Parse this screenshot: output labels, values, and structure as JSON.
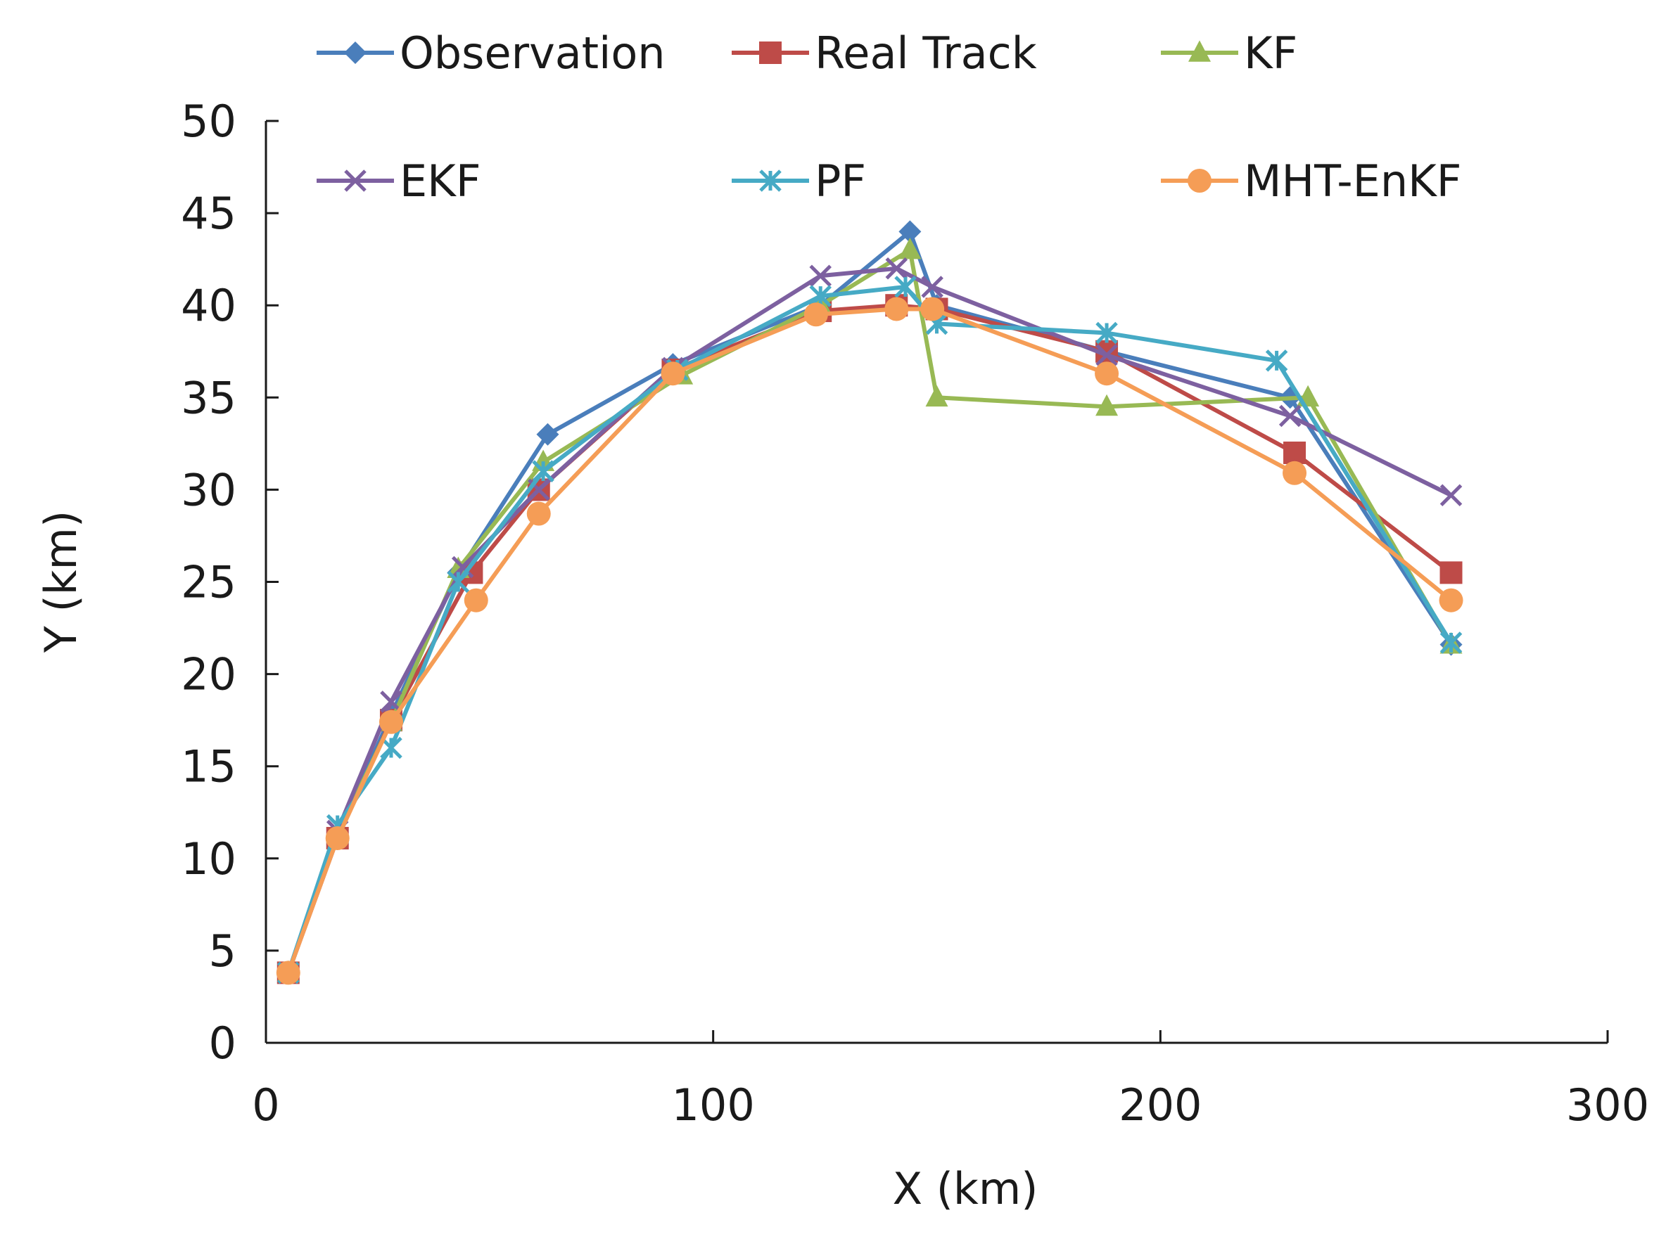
{
  "chart_data": {
    "type": "line",
    "title": "",
    "xlabel": "X (km)",
    "ylabel": "Y (km)",
    "xlim": [
      0,
      300
    ],
    "ylim": [
      0,
      50
    ],
    "xticks": [
      0,
      100,
      200,
      300
    ],
    "yticks": [
      0,
      5,
      10,
      15,
      20,
      25,
      30,
      35,
      40,
      45,
      50
    ],
    "grid": false,
    "legend_position": "top",
    "series": [
      {
        "name": "Observation",
        "color": "#4A7EBB",
        "marker": "diamond",
        "points": [
          [
            5,
            3.8
          ],
          [
            16,
            11.2
          ],
          [
            28,
            17.8
          ],
          [
            43,
            25.5
          ],
          [
            63,
            33
          ],
          [
            91,
            36.8
          ],
          [
            124,
            40
          ],
          [
            144,
            44
          ],
          [
            150,
            40
          ],
          [
            188,
            37.5
          ],
          [
            229,
            35
          ],
          [
            265,
            21.6
          ]
        ]
      },
      {
        "name": "Real Track",
        "color": "#BE4B48",
        "marker": "square",
        "points": [
          [
            5,
            3.8
          ],
          [
            16,
            11.1
          ],
          [
            28,
            17.5
          ],
          [
            46,
            25.5
          ],
          [
            61,
            30
          ],
          [
            91,
            36.5
          ],
          [
            124,
            39.7
          ],
          [
            141,
            40
          ],
          [
            150,
            39.8
          ],
          [
            188,
            37.5
          ],
          [
            230,
            32
          ],
          [
            265,
            25.5
          ]
        ]
      },
      {
        "name": "KF",
        "color": "#98B954",
        "marker": "triangle",
        "points": [
          [
            5,
            3.8
          ],
          [
            16,
            11.3
          ],
          [
            28,
            17.4
          ],
          [
            43,
            25.7
          ],
          [
            62,
            31.5
          ],
          [
            93,
            36.2
          ],
          [
            124,
            40
          ],
          [
            144,
            43
          ],
          [
            150,
            35
          ],
          [
            188,
            34.5
          ],
          [
            233,
            35
          ],
          [
            265,
            21.6
          ]
        ]
      },
      {
        "name": "EKF",
        "color": "#7D60A0",
        "marker": "x",
        "points": [
          [
            5,
            3.8
          ],
          [
            16,
            11.5
          ],
          [
            28,
            18.5
          ],
          [
            44,
            25.8
          ],
          [
            61,
            30
          ],
          [
            91,
            36.6
          ],
          [
            124,
            41.6
          ],
          [
            141,
            42
          ],
          [
            149,
            41
          ],
          [
            188,
            37.3
          ],
          [
            229,
            34
          ],
          [
            265,
            29.7
          ]
        ]
      },
      {
        "name": "PF",
        "color": "#46AAC5",
        "marker": "star",
        "points": [
          [
            5,
            3.8
          ],
          [
            16,
            11.8
          ],
          [
            28,
            16
          ],
          [
            43,
            25
          ],
          [
            62,
            31
          ],
          [
            92,
            36.5
          ],
          [
            124,
            40.5
          ],
          [
            143,
            41
          ],
          [
            150,
            39
          ],
          [
            188,
            38.5
          ],
          [
            226,
            37
          ],
          [
            265,
            21.7
          ]
        ]
      },
      {
        "name": "MHT-EnKF",
        "color": "#F59D56",
        "marker": "circle",
        "points": [
          [
            5,
            3.8
          ],
          [
            16,
            11.1
          ],
          [
            28,
            17.4
          ],
          [
            47,
            24
          ],
          [
            61,
            28.7
          ],
          [
            91,
            36.3
          ],
          [
            123,
            39.5
          ],
          [
            141,
            39.8
          ],
          [
            149,
            39.8
          ],
          [
            188,
            36.3
          ],
          [
            230,
            30.9
          ],
          [
            265,
            24
          ]
        ]
      }
    ]
  }
}
